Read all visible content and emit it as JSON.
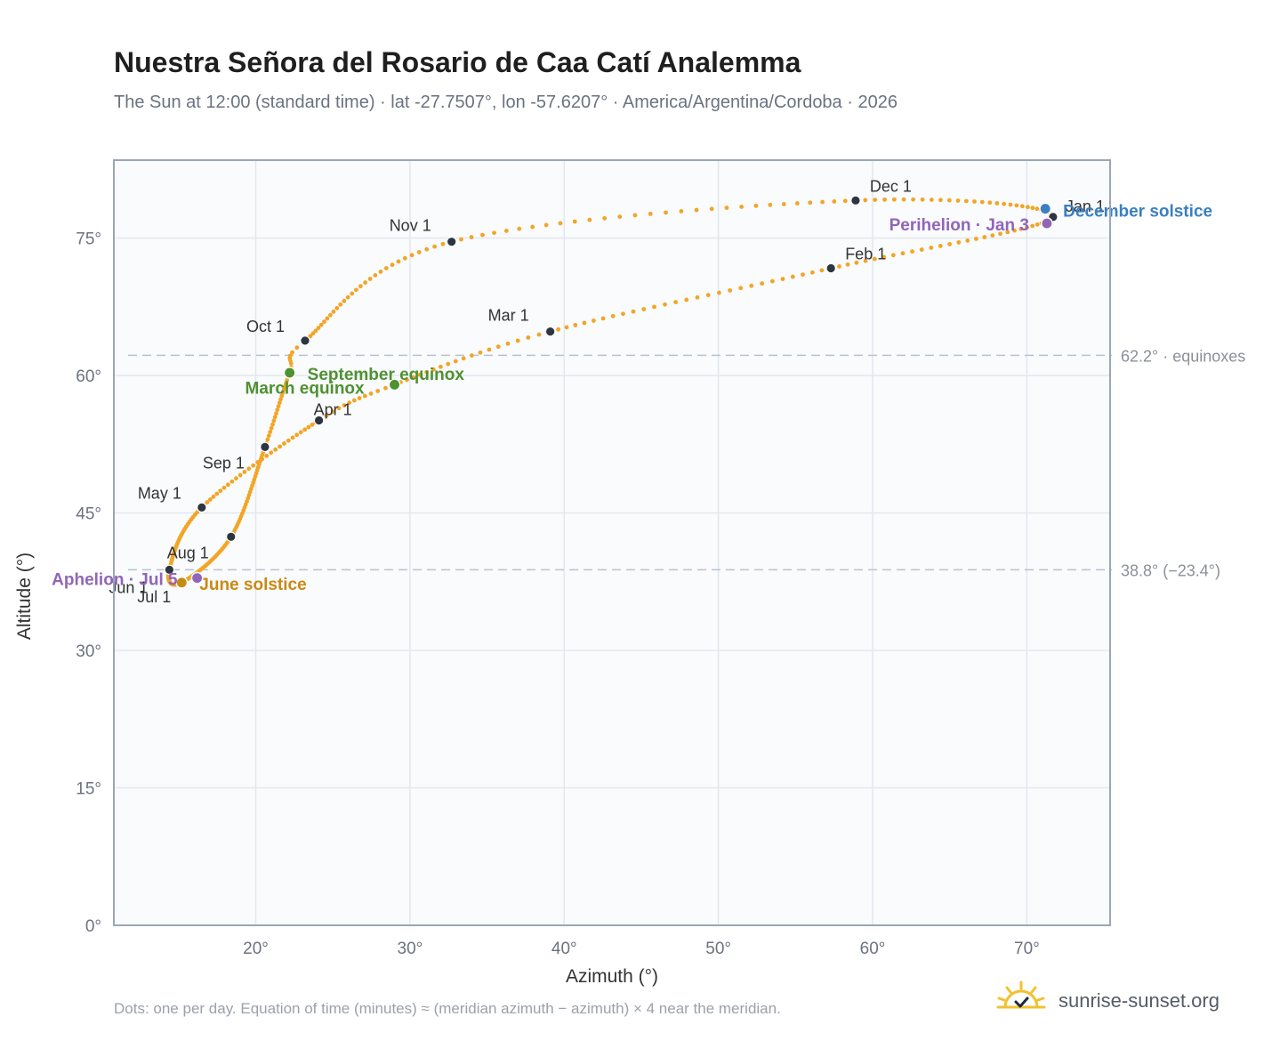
{
  "header": {
    "title": "Nuestra Señora del Rosario de Caa Catí Analemma",
    "subtitle": "The Sun at 12:00 (standard time) · lat -27.7507°, lon -57.6207° · America/Argentina/Cordoba · 2026"
  },
  "footnote": "Dots: one per day. Equation of time (minutes) ≈ (meridian azimuth − azimuth) × 4 near the meridian.",
  "brand": {
    "text": "sunrise-sunset.org",
    "icon": "sun-logo-icon"
  },
  "colors": {
    "path": "#f2a526",
    "month_marker": "#2d3540",
    "equinox": "#4f9131",
    "june_solstice": "#c98a12",
    "december_solstice": "#3a7fc1",
    "apsis": "#9165b8",
    "grid": "#e3e8ee",
    "plot_bg": "#f9fbfd",
    "frame": "#9aa6b6",
    "ref_line": "#b8c2cf"
  },
  "chart_data": {
    "type": "scatter",
    "title": "Nuestra Señora del Rosario de Caa Catí Analemma",
    "xlabel": "Azimuth (°)",
    "ylabel": "Altitude (°)",
    "xlim": [
      10.8,
      75.4
    ],
    "ylim": [
      0,
      83.5
    ],
    "xticks": [
      20,
      30,
      40,
      50,
      60,
      70
    ],
    "yticks": [
      0,
      15,
      30,
      45,
      60,
      75
    ],
    "xtick_labels": [
      "20°",
      "30°",
      "40°",
      "50°",
      "60°",
      "70°"
    ],
    "ytick_labels": [
      "0°",
      "15°",
      "30°",
      "45°",
      "60°",
      "75°"
    ],
    "grid": true,
    "legend": "none",
    "reference_lines": [
      {
        "y": 62.2,
        "label": "62.2° · equinoxes"
      },
      {
        "y": 38.8,
        "label": "38.8° (−23.4°)"
      }
    ],
    "month_markers": [
      {
        "label": "Jan 1",
        "az": 71.7,
        "alt": 77.3
      },
      {
        "label": "Feb 1",
        "az": 57.3,
        "alt": 71.7
      },
      {
        "label": "Mar 1",
        "az": 39.1,
        "alt": 64.8
      },
      {
        "label": "Apr 1",
        "az": 24.1,
        "alt": 55.1
      },
      {
        "label": "May 1",
        "az": 16.5,
        "alt": 45.6
      },
      {
        "label": "Jun 1",
        "az": 14.4,
        "alt": 38.8
      },
      {
        "label": "Jul 1",
        "az": 15.2,
        "alt": 37.4
      },
      {
        "label": "Aug 1",
        "az": 18.4,
        "alt": 42.4
      },
      {
        "label": "Sep 1",
        "az": 20.6,
        "alt": 52.2
      },
      {
        "label": "Oct 1",
        "az": 23.2,
        "alt": 63.8
      },
      {
        "label": "Nov 1",
        "az": 32.7,
        "alt": 74.6
      },
      {
        "label": "Dec 1",
        "az": 58.9,
        "alt": 79.1
      }
    ],
    "events": [
      {
        "label": "March equinox",
        "az": 29.0,
        "alt": 59.0,
        "kind": "equinox"
      },
      {
        "label": "September equinox",
        "az": 22.2,
        "alt": 60.3,
        "kind": "equinox"
      },
      {
        "label": "June solstice",
        "az": 15.2,
        "alt": 37.4,
        "kind": "june_solstice"
      },
      {
        "label": "December solstice",
        "az": 71.2,
        "alt": 78.2,
        "kind": "december_solstice"
      },
      {
        "label": "Aphelion · Jul 5",
        "az": 16.2,
        "alt": 37.9,
        "kind": "apsis"
      },
      {
        "label": "Perihelion · Jan 3",
        "az": 71.3,
        "alt": 76.6,
        "kind": "apsis"
      }
    ]
  }
}
